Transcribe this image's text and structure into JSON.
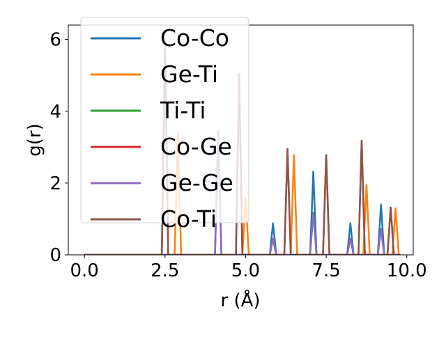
{
  "chart_data": {
    "type": "line",
    "xlabel": "r (Å)",
    "ylabel": "g(r)",
    "xlim": [
      -0.5,
      10.2
    ],
    "ylim": [
      0,
      6.4
    ],
    "xticks": [
      {
        "value": 0.0,
        "label": "0.0"
      },
      {
        "value": 2.5,
        "label": "2.5"
      },
      {
        "value": 5.0,
        "label": "5.0"
      },
      {
        "value": 7.5,
        "label": "7.5"
      },
      {
        "value": 10.0,
        "label": "10.0"
      }
    ],
    "yticks": [
      {
        "value": 0,
        "label": "0"
      },
      {
        "value": 2,
        "label": "2"
      },
      {
        "value": 4,
        "label": "4"
      },
      {
        "value": 6,
        "label": "6"
      }
    ],
    "grid": false,
    "legend_position": "top-left",
    "x_end": 9.8,
    "peak_half_width": 0.1,
    "series": [
      {
        "name": "Co-Co",
        "color": "#1f77b4",
        "peaks": [
          [
            4.15,
            3.45
          ],
          [
            5.85,
            0.88
          ],
          [
            7.1,
            2.32
          ],
          [
            8.25,
            0.88
          ],
          [
            9.2,
            1.4
          ]
        ]
      },
      {
        "name": "Ge-Ti",
        "color": "#ff7f0e",
        "peaks": [
          [
            2.9,
            3.4
          ],
          [
            5.0,
            1.58
          ],
          [
            6.5,
            2.78
          ],
          [
            8.75,
            1.95
          ],
          [
            9.65,
            1.3
          ]
        ]
      },
      {
        "name": "Ti-Ti",
        "color": "#2ca02c",
        "peaks": [
          [
            4.15,
            3.45
          ],
          [
            5.85,
            0.45
          ],
          [
            7.1,
            1.18
          ],
          [
            8.25,
            0.45
          ],
          [
            9.2,
            0.72
          ]
        ]
      },
      {
        "name": "Co-Ge",
        "color": "#d62728",
        "peaks": [
          [
            2.5,
            5.95
          ],
          [
            4.8,
            5.05
          ],
          [
            6.3,
            2.95
          ],
          [
            7.5,
            2.78
          ],
          [
            8.6,
            3.18
          ],
          [
            9.5,
            1.32
          ]
        ]
      },
      {
        "name": "Ge-Ge",
        "color": "#9467bd",
        "peaks": [
          [
            4.15,
            3.45
          ],
          [
            5.85,
            0.45
          ],
          [
            7.1,
            1.18
          ],
          [
            8.25,
            0.45
          ],
          [
            9.2,
            0.72
          ]
        ]
      },
      {
        "name": "Co-Ti",
        "color": "#8c564b",
        "peaks": [
          [
            2.5,
            5.95
          ],
          [
            4.8,
            5.05
          ],
          [
            6.3,
            2.95
          ],
          [
            7.5,
            2.78
          ],
          [
            8.6,
            3.18
          ],
          [
            9.5,
            1.32
          ]
        ]
      }
    ]
  }
}
